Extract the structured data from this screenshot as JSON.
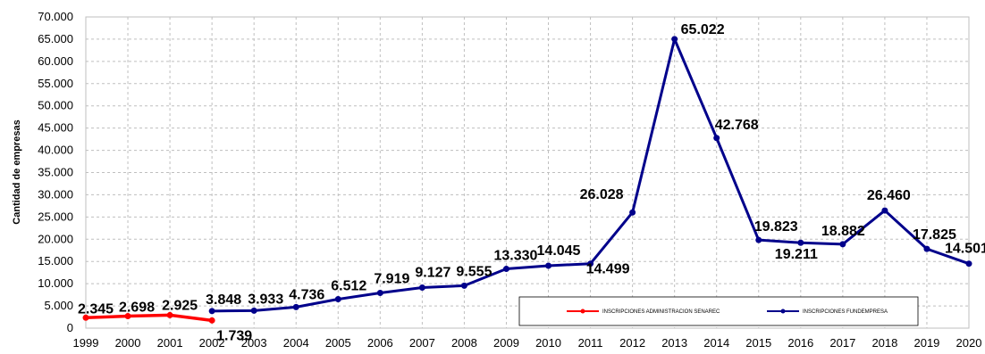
{
  "chart_data": {
    "type": "line",
    "ylabel": "Cantidad de empresas",
    "xlabel": "",
    "ylim": [
      0,
      70000
    ],
    "y_ticks": [
      0,
      5000,
      10000,
      15000,
      20000,
      25000,
      30000,
      35000,
      40000,
      45000,
      50000,
      55000,
      60000,
      65000,
      70000
    ],
    "y_tick_labels": [
      "0",
      "5.000",
      "10.000",
      "15.000",
      "20.000",
      "25.000",
      "30.000",
      "35.000",
      "40.000",
      "45.000",
      "50.000",
      "55.000",
      "60.000",
      "65.000",
      "70.000"
    ],
    "categories": [
      "1999",
      "2000",
      "2001",
      "2002",
      "2003",
      "2004",
      "2005",
      "2006",
      "2007",
      "2008",
      "2009",
      "2010",
      "2011",
      "2012",
      "2013",
      "2014",
      "2015",
      "2016",
      "2017",
      "2018",
      "2019",
      "2020"
    ],
    "grid": true,
    "legend_position": "bottom-right inside plot",
    "series": [
      {
        "name": "INSCRIPCIONES ADMINISTRACION SENAREC",
        "color": "#ff0000",
        "points": [
          {
            "x": "1999",
            "y": 2345,
            "label": "2.345"
          },
          {
            "x": "2000",
            "y": 2698,
            "label": "2.698"
          },
          {
            "x": "2001",
            "y": 2925,
            "label": "2.925"
          },
          {
            "x": "2002",
            "y": 1739,
            "label": "1.739"
          }
        ]
      },
      {
        "name": "INSCRIPCIONES FUNDEMPRESA",
        "color": "#00008b",
        "points": [
          {
            "x": "2002",
            "y": 3848,
            "label": "3.848"
          },
          {
            "x": "2003",
            "y": 3933,
            "label": "3.933"
          },
          {
            "x": "2004",
            "y": 4736,
            "label": "4.736"
          },
          {
            "x": "2005",
            "y": 6512,
            "label": "6.512"
          },
          {
            "x": "2006",
            "y": 7919,
            "label": "7.919"
          },
          {
            "x": "2007",
            "y": 9127,
            "label": "9.127"
          },
          {
            "x": "2008",
            "y": 9555,
            "label": "9.555"
          },
          {
            "x": "2009",
            "y": 13330,
            "label": "13.330"
          },
          {
            "x": "2010",
            "y": 14045,
            "label": "14.045"
          },
          {
            "x": "2011",
            "y": 14499,
            "label": "14.499"
          },
          {
            "x": "2012",
            "y": 26028,
            "label": "26.028"
          },
          {
            "x": "2013",
            "y": 65022,
            "label": "65.022"
          },
          {
            "x": "2014",
            "y": 42768,
            "label": "42.768"
          },
          {
            "x": "2015",
            "y": 19823,
            "label": "19.823"
          },
          {
            "x": "2016",
            "y": 19211,
            "label": "19.211"
          },
          {
            "x": "2017",
            "y": 18882,
            "label": "18.882"
          },
          {
            "x": "2018",
            "y": 26460,
            "label": "26.460"
          },
          {
            "x": "2019",
            "y": 17825,
            "label": "17.825"
          },
          {
            "x": "2020",
            "y": 14501,
            "label": "14.501"
          }
        ]
      }
    ]
  }
}
